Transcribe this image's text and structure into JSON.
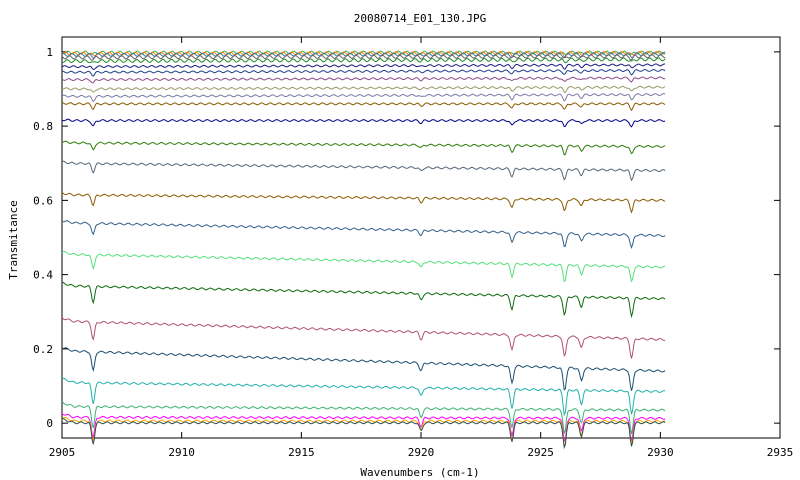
{
  "chart_data": {
    "type": "line",
    "title": "20080714_E01_130.JPG",
    "xlabel": "Wavenumbers (cm-1)",
    "ylabel": "Transmitance",
    "xlim": [
      2905,
      2935
    ],
    "ylim": [
      -0.04,
      1.04
    ],
    "xticks": [
      {
        "value": 2905,
        "label": "2905"
      },
      {
        "value": 2910,
        "label": "2910"
      },
      {
        "value": 2915,
        "label": "2915"
      },
      {
        "value": 2920,
        "label": "2920"
      },
      {
        "value": 2925,
        "label": "2925"
      },
      {
        "value": 2930,
        "label": "2930"
      },
      {
        "value": 2935,
        "label": "2935"
      }
    ],
    "yticks": [
      {
        "value": 0,
        "label": "0"
      },
      {
        "value": 0.2,
        "label": "0.2"
      },
      {
        "value": 0.4,
        "label": "0.4"
      },
      {
        "value": 0.6,
        "label": "0.6"
      },
      {
        "value": 0.8,
        "label": "0.8"
      },
      {
        "value": 1,
        "label": "1"
      }
    ],
    "grid": false,
    "legend": "none",
    "x_range": [
      2905.0,
      2930.2
    ],
    "absorption_lines": [
      2906.3,
      2920.0,
      2923.8,
      2926.0,
      2926.7,
      2928.8
    ],
    "series": [
      {
        "color": "#4daf4a",
        "baseline_left": 0.998,
        "baseline_right": 0.998
      },
      {
        "color": "#ff7f00",
        "baseline_left": 0.995,
        "baseline_right": 0.997
      },
      {
        "color": "#377eb8",
        "baseline_left": 0.992,
        "baseline_right": 0.994
      },
      {
        "color": "#666666",
        "baseline_left": 0.985,
        "baseline_right": 0.988
      },
      {
        "color": "#228b22",
        "baseline_left": 0.975,
        "baseline_right": 0.98
      },
      {
        "color": "#1a1a80",
        "baseline_left": 0.96,
        "baseline_right": 0.965
      },
      {
        "color": "#1f3f8f",
        "baseline_left": 0.945,
        "baseline_right": 0.95
      },
      {
        "color": "#8b4b8b",
        "baseline_left": 0.925,
        "baseline_right": 0.93
      },
      {
        "color": "#999966",
        "baseline_left": 0.9,
        "baseline_right": 0.905
      },
      {
        "color": "#7a7aa8",
        "baseline_left": 0.88,
        "baseline_right": 0.885
      },
      {
        "color": "#8b5a00",
        "baseline_left": 0.86,
        "baseline_right": 0.86
      },
      {
        "color": "#00008b",
        "baseline_left": 0.815,
        "baseline_right": 0.815
      },
      {
        "color": "#2e7d0a",
        "baseline_left": 0.755,
        "baseline_right": 0.745
      },
      {
        "color": "#556677",
        "baseline_left": 0.7,
        "baseline_right": 0.68
      },
      {
        "color": "#8b5a00",
        "baseline_left": 0.615,
        "baseline_right": 0.6
      },
      {
        "color": "#33608c",
        "baseline_left": 0.54,
        "baseline_right": 0.505
      },
      {
        "color": "#55e07a",
        "baseline_left": 0.455,
        "baseline_right": 0.42
      },
      {
        "color": "#0b6b0b",
        "baseline_left": 0.37,
        "baseline_right": 0.335
      },
      {
        "color": "#b0507a",
        "baseline_left": 0.275,
        "baseline_right": 0.225
      },
      {
        "color": "#1b4f72",
        "baseline_left": 0.195,
        "baseline_right": 0.14
      },
      {
        "color": "#20b2aa",
        "baseline_left": 0.11,
        "baseline_right": 0.085
      },
      {
        "color": "#3cb371",
        "baseline_left": 0.045,
        "baseline_right": 0.035
      },
      {
        "color": "#ff00ff",
        "baseline_left": 0.016,
        "baseline_right": 0.013
      },
      {
        "color": "#ffa500",
        "baseline_left": 0.006,
        "baseline_right": 0.005
      },
      {
        "color": "#2f4f4f",
        "baseline_left": 0.001,
        "baseline_right": 0.001
      }
    ]
  }
}
